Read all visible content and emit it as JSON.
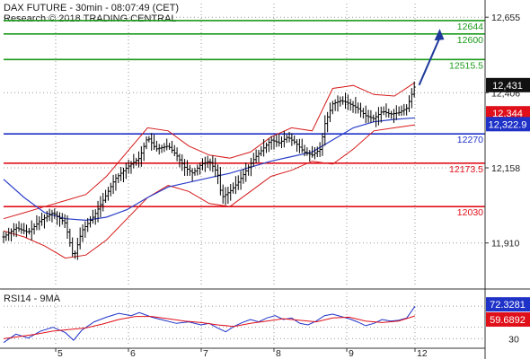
{
  "header": {
    "line1": "DAX FUTURE - 30min - 08:07:49 (CET)",
    "line2": "Research © 2018 TRADING CENTRAL"
  },
  "rsi_panel": {
    "label": "RSI14 - 9MA"
  },
  "colors": {
    "green": "#1a9a1a",
    "blue": "#1f32c8",
    "red": "#e0101a",
    "price": "#000000",
    "ma_blue": "#2b3ec9",
    "band_red": "#d61a1a",
    "arrow": "#1f3a9c",
    "grid": "#9a9a9a"
  },
  "chart_data": [
    {
      "type": "candlestick",
      "title": "DAX FUTURE - 30min",
      "x_tick_labels": [
        "5",
        "6",
        "7",
        "8",
        "9",
        "12"
      ],
      "y_tick_labels": [
        "12,655",
        "12,406",
        "12,158",
        "11,910"
      ],
      "ylim": [
        11770,
        12700
      ],
      "grid": "dotted",
      "horizontal_levels": [
        {
          "label": "12644",
          "value": 12644,
          "color": "green"
        },
        {
          "label": "12600",
          "value": 12600,
          "color": "green"
        },
        {
          "label": "12515.5",
          "value": 12515.5,
          "color": "green"
        },
        {
          "label": "12270",
          "value": 12270,
          "color": "blue"
        },
        {
          "label": "12173.5",
          "value": 12173.5,
          "color": "red"
        },
        {
          "label": "12030",
          "value": 12030,
          "color": "red"
        }
      ],
      "value_boxes": [
        {
          "label": "12,431",
          "value": 12431,
          "color": "black"
        },
        {
          "label": "12,344",
          "value": 12344,
          "color": "red"
        },
        {
          "label": "12,322.9",
          "value": 12322.9,
          "color": "blue"
        }
      ],
      "price_path": [
        [
          0,
          11930
        ],
        [
          3,
          11960
        ],
        [
          6,
          11945
        ],
        [
          9,
          11985
        ],
        [
          12,
          12010
        ],
        [
          15,
          11975
        ],
        [
          17,
          11860
        ],
        [
          19,
          11950
        ],
        [
          22,
          12000
        ],
        [
          25,
          12070
        ],
        [
          27,
          12120
        ],
        [
          30,
          12160
        ],
        [
          33,
          12190
        ],
        [
          35,
          12260
        ],
        [
          37,
          12220
        ],
        [
          40,
          12230
        ],
        [
          42,
          12200
        ],
        [
          44,
          12160
        ],
        [
          46,
          12140
        ],
        [
          48,
          12170
        ],
        [
          50,
          12180
        ],
        [
          52,
          12140
        ],
        [
          53,
          12060
        ],
        [
          55,
          12080
        ],
        [
          57,
          12110
        ],
        [
          59,
          12150
        ],
        [
          61,
          12190
        ],
        [
          63,
          12220
        ],
        [
          65,
          12250
        ],
        [
          67,
          12240
        ],
        [
          69,
          12260
        ],
        [
          71,
          12240
        ],
        [
          73,
          12210
        ],
        [
          75,
          12200
        ],
        [
          77,
          12220
        ],
        [
          78,
          12300
        ],
        [
          80,
          12370
        ],
        [
          82,
          12380
        ],
        [
          84,
          12370
        ],
        [
          86,
          12355
        ],
        [
          88,
          12330
        ],
        [
          90,
          12320
        ],
        [
          92,
          12345
        ],
        [
          94,
          12335
        ],
        [
          96,
          12340
        ],
        [
          98,
          12355
        ],
        [
          100,
          12431
        ]
      ],
      "ma_path": [
        [
          0,
          12120
        ],
        [
          5,
          12060
        ],
        [
          10,
          12010
        ],
        [
          15,
          11990
        ],
        [
          20,
          11985
        ],
        [
          25,
          11995
        ],
        [
          30,
          12020
        ],
        [
          35,
          12060
        ],
        [
          40,
          12095
        ],
        [
          45,
          12110
        ],
        [
          50,
          12125
        ],
        [
          55,
          12140
        ],
        [
          60,
          12160
        ],
        [
          65,
          12180
        ],
        [
          70,
          12195
        ],
        [
          75,
          12210
        ],
        [
          80,
          12250
        ],
        [
          85,
          12290
        ],
        [
          90,
          12310
        ],
        [
          95,
          12318
        ],
        [
          100,
          12322.9
        ]
      ],
      "upper_band": [
        [
          0,
          11990
        ],
        [
          5,
          12010
        ],
        [
          10,
          12030
        ],
        [
          15,
          12050
        ],
        [
          20,
          12070
        ],
        [
          25,
          12130
        ],
        [
          30,
          12210
        ],
        [
          35,
          12290
        ],
        [
          40,
          12280
        ],
        [
          45,
          12230
        ],
        [
          50,
          12200
        ],
        [
          55,
          12190
        ],
        [
          60,
          12210
        ],
        [
          65,
          12260
        ],
        [
          70,
          12290
        ],
        [
          75,
          12280
        ],
        [
          80,
          12420
        ],
        [
          85,
          12430
        ],
        [
          90,
          12400
        ],
        [
          95,
          12395
        ],
        [
          100,
          12440
        ]
      ],
      "lower_band": [
        [
          0,
          11950
        ],
        [
          5,
          11930
        ],
        [
          10,
          11900
        ],
        [
          15,
          11860
        ],
        [
          20,
          11870
        ],
        [
          25,
          11920
        ],
        [
          30,
          11990
        ],
        [
          35,
          12060
        ],
        [
          40,
          12100
        ],
        [
          45,
          12080
        ],
        [
          50,
          12040
        ],
        [
          55,
          12030
        ],
        [
          60,
          12080
        ],
        [
          65,
          12130
        ],
        [
          70,
          12150
        ],
        [
          75,
          12180
        ],
        [
          80,
          12170
        ],
        [
          85,
          12220
        ],
        [
          90,
          12280
        ],
        [
          95,
          12290
        ],
        [
          100,
          12300
        ]
      ],
      "projection_arrow": {
        "from": [
          101,
          12431
        ],
        "to": [
          106,
          12605
        ]
      }
    },
    {
      "type": "line",
      "title": "RSI14 - 9MA",
      "y_tick_labels": [
        "72.3281",
        "59.6892",
        "30"
      ],
      "ylim": [
        20,
        90
      ],
      "series": [
        {
          "name": "RSI14",
          "color": "blue",
          "values": [
            [
              0,
              25
            ],
            [
              3,
              36
            ],
            [
              6,
              31
            ],
            [
              9,
              40
            ],
            [
              12,
              45
            ],
            [
              15,
              38
            ],
            [
              17,
              28
            ],
            [
              19,
              41
            ],
            [
              22,
              52
            ],
            [
              25,
              58
            ],
            [
              28,
              63
            ],
            [
              31,
              60
            ],
            [
              33,
              64
            ],
            [
              36,
              58
            ],
            [
              39,
              54
            ],
            [
              42,
              50
            ],
            [
              45,
              52
            ],
            [
              48,
              48
            ],
            [
              50,
              50
            ],
            [
              52,
              44
            ],
            [
              54,
              39
            ],
            [
              56,
              46
            ],
            [
              58,
              51
            ],
            [
              60,
              55
            ],
            [
              62,
              52
            ],
            [
              64,
              57
            ],
            [
              66,
              60
            ],
            [
              68,
              55
            ],
            [
              70,
              57
            ],
            [
              72,
              50
            ],
            [
              74,
              48
            ],
            [
              76,
              53
            ],
            [
              78,
              60
            ],
            [
              80,
              62
            ],
            [
              82,
              59
            ],
            [
              84,
              56
            ],
            [
              86,
              52
            ],
            [
              88,
              47
            ],
            [
              90,
              50
            ],
            [
              92,
              55
            ],
            [
              94,
              53
            ],
            [
              96,
              54
            ],
            [
              98,
              57
            ],
            [
              100,
              72.3
            ]
          ]
        },
        {
          "name": "9MA",
          "color": "red",
          "values": [
            [
              0,
              30
            ],
            [
              4,
              33
            ],
            [
              8,
              36
            ],
            [
              12,
              40
            ],
            [
              16,
              42
            ],
            [
              20,
              44
            ],
            [
              24,
              49
            ],
            [
              28,
              55
            ],
            [
              32,
              59
            ],
            [
              36,
              59
            ],
            [
              40,
              56
            ],
            [
              44,
              53
            ],
            [
              48,
              51
            ],
            [
              52,
              48
            ],
            [
              56,
              46
            ],
            [
              60,
              50
            ],
            [
              64,
              53
            ],
            [
              68,
              56
            ],
            [
              72,
              54
            ],
            [
              76,
              52
            ],
            [
              80,
              57
            ],
            [
              84,
              58
            ],
            [
              88,
              53
            ],
            [
              92,
              51
            ],
            [
              96,
              53
            ],
            [
              100,
              59.7
            ]
          ]
        }
      ],
      "value_boxes": [
        {
          "label": "72.3281",
          "value": 72.3281,
          "color": "blue"
        },
        {
          "label": "59.6892",
          "value": 59.6892,
          "color": "red"
        }
      ]
    }
  ]
}
